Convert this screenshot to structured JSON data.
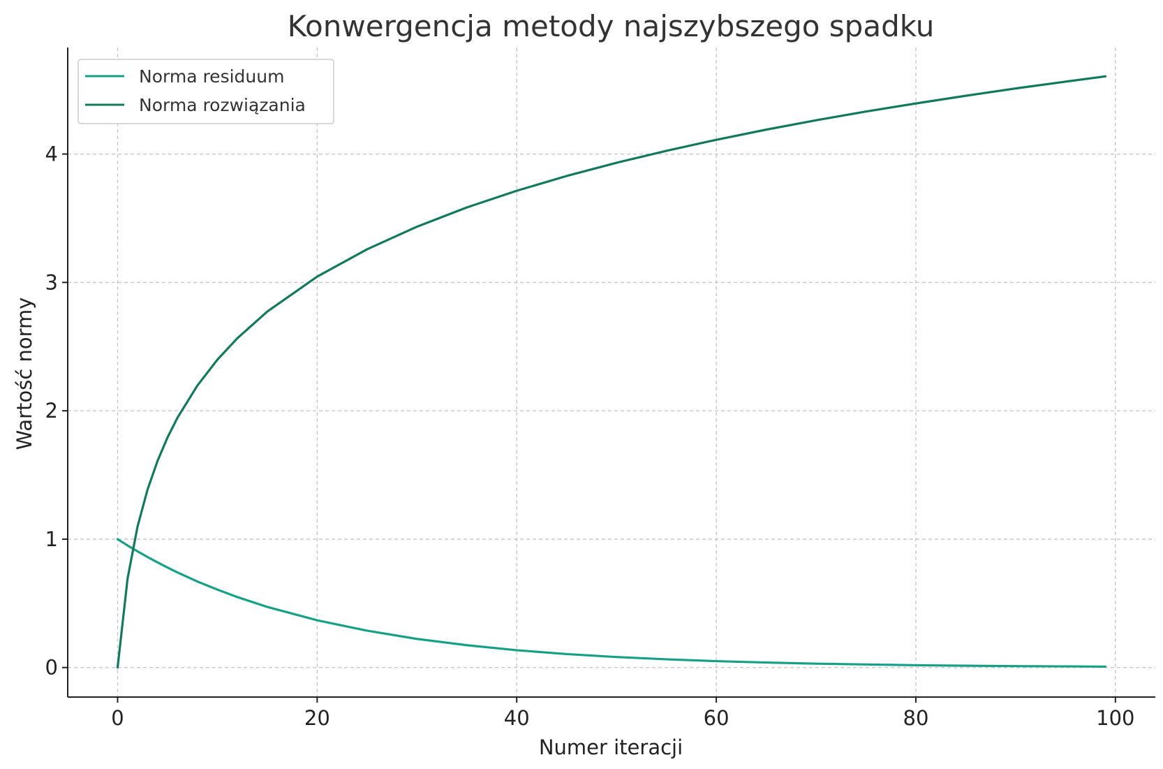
{
  "chart_data": {
    "type": "line",
    "title": "Konwergencja metody najszybszego spadku",
    "xlabel": "Numer iteracji",
    "ylabel": "Wartość normy",
    "xlim": [
      -5,
      104
    ],
    "ylim": [
      -0.23,
      4.83
    ],
    "xticks": [
      0,
      20,
      40,
      60,
      80,
      100
    ],
    "yticks": [
      0,
      1,
      2,
      3,
      4
    ],
    "grid": true,
    "legend_position": "top-left",
    "x": [
      0,
      1,
      2,
      3,
      4,
      5,
      6,
      8,
      10,
      12,
      15,
      20,
      25,
      30,
      35,
      40,
      45,
      50,
      55,
      60,
      65,
      70,
      75,
      80,
      85,
      90,
      95,
      99
    ],
    "series": [
      {
        "name": "Norma residuum",
        "color": "#16a085",
        "values": [
          1.0,
          0.951,
          0.905,
          0.861,
          0.819,
          0.779,
          0.741,
          0.67,
          0.607,
          0.549,
          0.472,
          0.368,
          0.287,
          0.223,
          0.174,
          0.135,
          0.105,
          0.082,
          0.064,
          0.05,
          0.039,
          0.03,
          0.024,
          0.018,
          0.014,
          0.011,
          0.009,
          0.007
        ]
      },
      {
        "name": "Norma rozwiązania",
        "color": "#13795b",
        "values": [
          0.0,
          0.693,
          1.099,
          1.386,
          1.609,
          1.792,
          1.946,
          2.197,
          2.398,
          2.565,
          2.773,
          3.045,
          3.258,
          3.434,
          3.584,
          3.714,
          3.829,
          3.932,
          4.025,
          4.111,
          4.19,
          4.263,
          4.331,
          4.394,
          4.454,
          4.511,
          4.564,
          4.605
        ]
      }
    ]
  }
}
